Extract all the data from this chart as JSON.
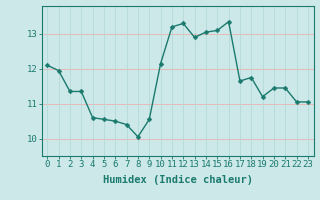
{
  "x": [
    0,
    1,
    2,
    3,
    4,
    5,
    6,
    7,
    8,
    9,
    10,
    11,
    12,
    13,
    14,
    15,
    16,
    17,
    18,
    19,
    20,
    21,
    22,
    23
  ],
  "y": [
    12.1,
    11.95,
    11.35,
    11.35,
    10.6,
    10.55,
    10.5,
    10.4,
    10.05,
    10.55,
    12.15,
    13.2,
    13.3,
    12.9,
    13.05,
    13.1,
    13.35,
    11.65,
    11.75,
    11.2,
    11.45,
    11.45,
    11.05,
    11.05
  ],
  "line_color": "#1a7a6e",
  "marker_color": "#1a7a6e",
  "bg_color": "#cce8e8",
  "grid_color_h": "#e8b8b8",
  "grid_color_v": "#b0d8d8",
  "xlabel": "Humidex (Indice chaleur)",
  "ylim": [
    9.5,
    13.8
  ],
  "xlim": [
    -0.5,
    23.5
  ],
  "yticks": [
    10,
    11,
    12,
    13
  ],
  "xticks": [
    0,
    1,
    2,
    3,
    4,
    5,
    6,
    7,
    8,
    9,
    10,
    11,
    12,
    13,
    14,
    15,
    16,
    17,
    18,
    19,
    20,
    21,
    22,
    23
  ],
  "tick_fontsize": 6.5,
  "xlabel_fontsize": 7.5,
  "marker_size": 2.5,
  "line_width": 1.0
}
